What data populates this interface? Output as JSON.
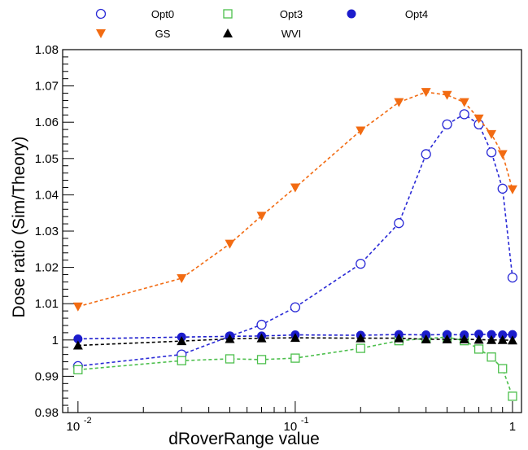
{
  "chart_data": {
    "type": "line",
    "title": "",
    "xlabel": "dRoverRange value",
    "ylabel": "Dose ratio (Sim/Theory)",
    "xscale": "log",
    "xlim": [
      0.0085,
      1.1
    ],
    "ylim": [
      0.98,
      1.08
    ],
    "yticks": [
      {
        "value": 0.98,
        "label": "0.98"
      },
      {
        "value": 0.99,
        "label": "0.99"
      },
      {
        "value": 1.0,
        "label": "1"
      },
      {
        "value": 1.01,
        "label": "1.01"
      },
      {
        "value": 1.02,
        "label": "1.02"
      },
      {
        "value": 1.03,
        "label": "1.03"
      },
      {
        "value": 1.04,
        "label": "1.04"
      },
      {
        "value": 1.05,
        "label": "1.05"
      },
      {
        "value": 1.06,
        "label": "1.06"
      },
      {
        "value": 1.07,
        "label": "1.07"
      },
      {
        "value": 1.08,
        "label": "1.08"
      }
    ],
    "xticks": [
      {
        "value": 0.01,
        "base": "10",
        "exp": "-2"
      },
      {
        "value": 0.1,
        "base": "10",
        "exp": "-1"
      },
      {
        "value": 1,
        "base": "1",
        "exp": ""
      }
    ],
    "grid": false,
    "legend_position": "top",
    "x": [
      0.01,
      0.03,
      0.05,
      0.07,
      0.1,
      0.2,
      0.3,
      0.4,
      0.5,
      0.6,
      0.7,
      0.8,
      0.9,
      1.0
    ],
    "series": [
      {
        "name": "Opt0",
        "marker": "circle-open",
        "color": "#2a2ad6",
        "values": [
          0.9928,
          0.996,
          1.001,
          1.0042,
          1.009,
          1.021,
          1.0322,
          1.0512,
          1.0594,
          1.0622,
          1.0594,
          1.0517,
          1.0417,
          1.0172
        ]
      },
      {
        "name": "Opt3",
        "marker": "square-open",
        "color": "#4cbf4c",
        "values": [
          0.9918,
          0.9943,
          0.9948,
          0.9946,
          0.995,
          0.9977,
          0.9998,
          1.0004,
          1.0008,
          0.9998,
          0.9975,
          0.9953,
          0.9921,
          0.9845
        ]
      },
      {
        "name": "Opt4",
        "marker": "circle-filled",
        "color": "#1c1ccc",
        "values": [
          1.0003,
          1.0008,
          1.001,
          1.0011,
          1.0014,
          1.0013,
          1.0015,
          1.0014,
          1.0015,
          1.0014,
          1.0016,
          1.0015,
          1.0014,
          1.0015
        ]
      },
      {
        "name": "GS",
        "marker": "triangle-down",
        "color": "#f26b12",
        "values": [
          1.0092,
          1.017,
          1.0265,
          1.0342,
          1.042,
          1.0577,
          1.0655,
          1.0683,
          1.0675,
          1.0655,
          1.061,
          1.0567,
          1.0512,
          1.0415
        ]
      },
      {
        "name": "WVI",
        "marker": "triangle-up",
        "color": "#000000",
        "values": [
          0.9985,
          0.9997,
          1.0003,
          1.0005,
          1.0006,
          1.0005,
          1.0005,
          1.0002,
          1.0002,
          1.0002,
          1.0001,
          1.0,
          1.0,
          0.9999
        ]
      }
    ]
  }
}
